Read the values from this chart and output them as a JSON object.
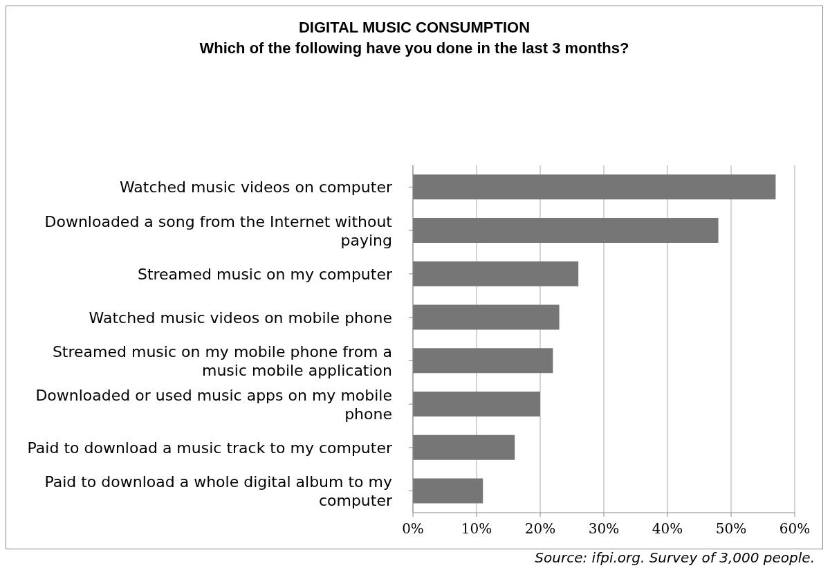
{
  "chart_data": {
    "type": "bar",
    "orientation": "horizontal",
    "title": "DIGITAL MUSIC CONSUMPTION",
    "subtitle": "Which of the following have you done in the last 3 months?",
    "categories": [
      "Watched music videos on computer",
      "Downloaded a song from the Internet without paying",
      "Streamed music on my computer",
      "Watched music videos on mobile phone",
      "Streamed music on my mobile phone from a music mobile application",
      "Downloaded or used music apps on my mobile phone",
      "Paid to download a music track to my computer",
      "Paid to download a whole digital album to my computer"
    ],
    "values": [
      57,
      48,
      26,
      23,
      22,
      20,
      16,
      11
    ],
    "color": "#767676",
    "xlim": [
      0,
      60
    ],
    "xticks": [
      {
        "value": 0,
        "label": "0%"
      },
      {
        "value": 10,
        "label": "10%"
      },
      {
        "value": 20,
        "label": "20%"
      },
      {
        "value": 30,
        "label": "30%"
      },
      {
        "value": 40,
        "label": "40%"
      },
      {
        "value": 50,
        "label": "50%"
      },
      {
        "value": 60,
        "label": "60%"
      }
    ],
    "grid": "x",
    "legend": false,
    "annotations": [
      "Source: ifpi.org. Survey of 3,000 people."
    ]
  }
}
